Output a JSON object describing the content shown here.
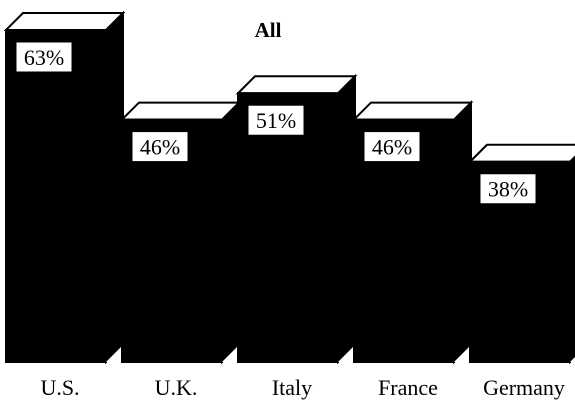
{
  "chart_data": {
    "type": "bar",
    "title": "All",
    "categories": [
      "U.S.",
      "U.K.",
      "Italy",
      "France",
      "Germany"
    ],
    "values": [
      63,
      46,
      51,
      46,
      38
    ],
    "value_labels": [
      "63%",
      "46%",
      "51%",
      "46%",
      "38%"
    ],
    "xlabel": "",
    "ylabel": "",
    "ylim": [
      0,
      63
    ],
    "grid": false,
    "legend": "none",
    "style": "3d-bars",
    "colors": {
      "bar": "#000000",
      "label_box": "#ffffff"
    }
  }
}
